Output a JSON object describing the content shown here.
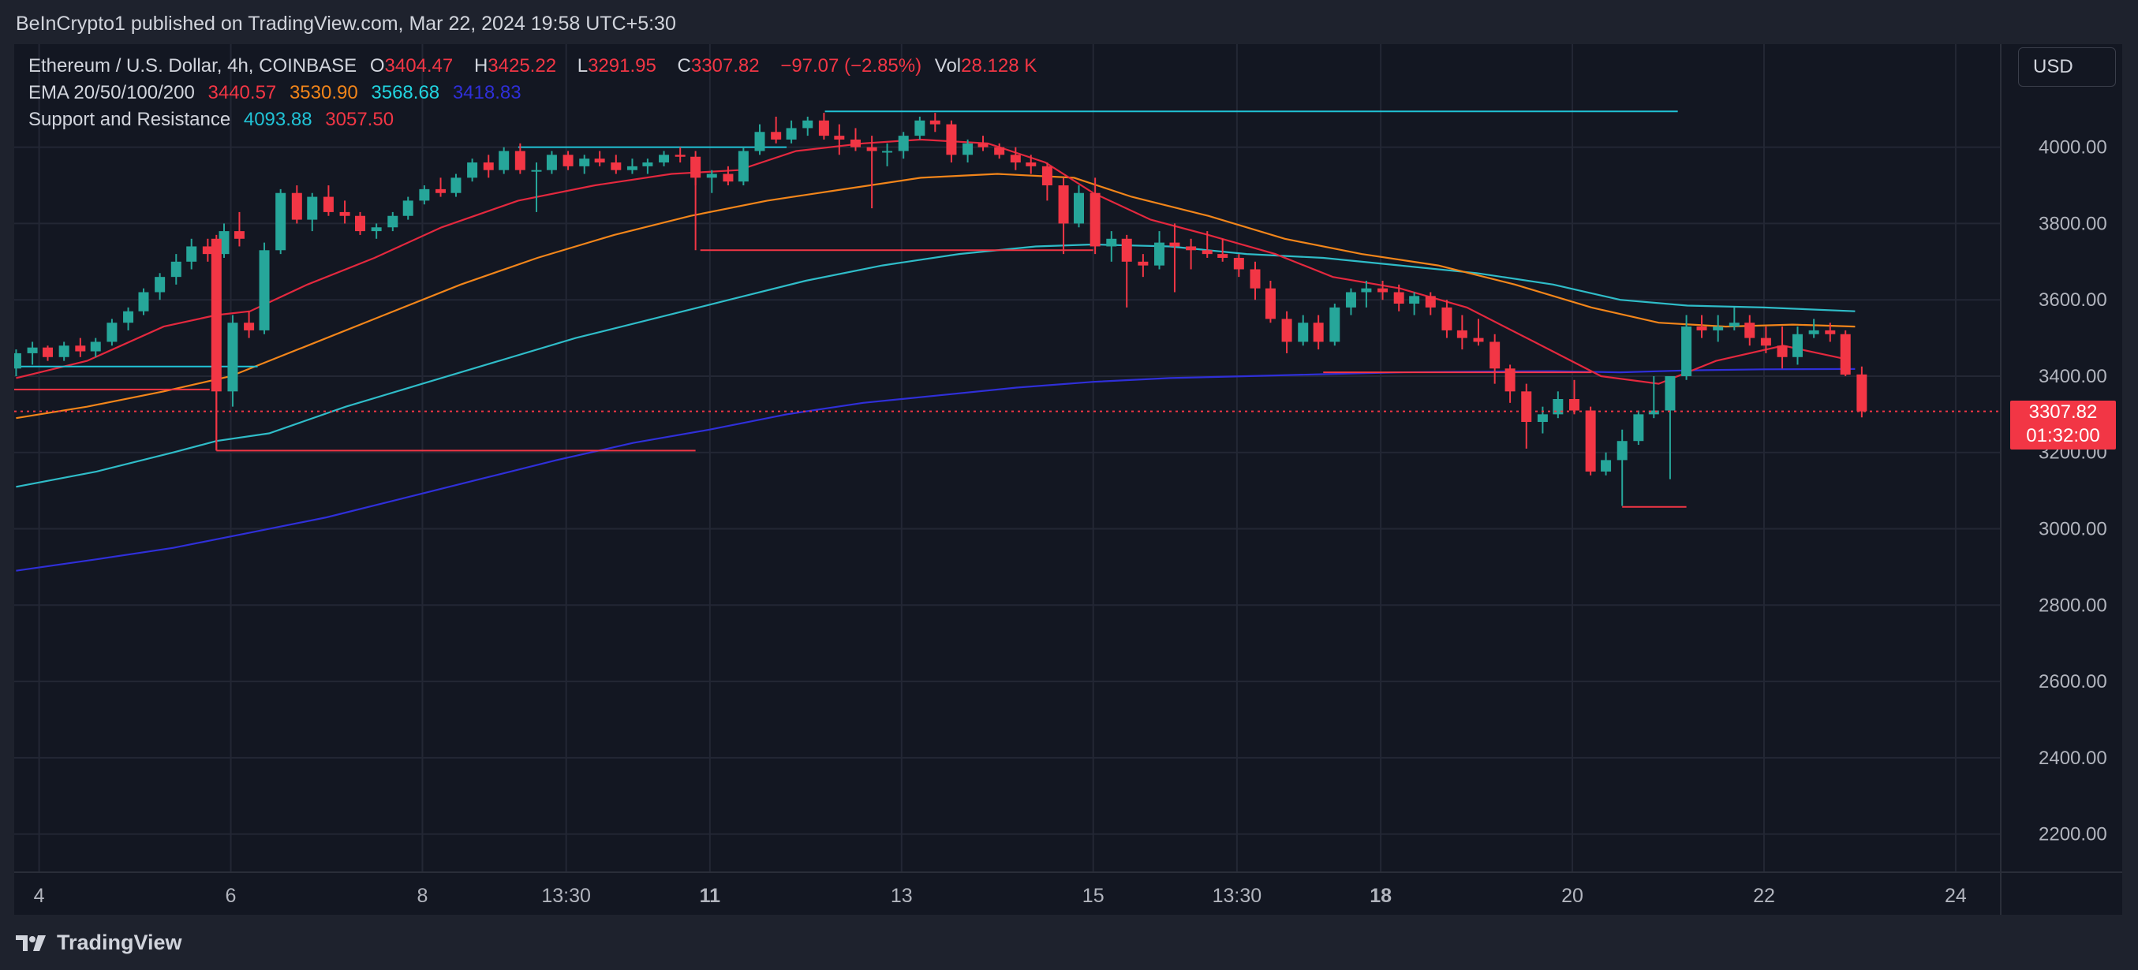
{
  "header": {
    "publish_line": "BeInCrypto1 published on TradingView.com, Mar 22, 2024 19:58 UTC+5:30"
  },
  "legend": {
    "symbol": "Ethereum / U.S. Dollar, 4h, COINBASE",
    "o_label": "O",
    "o_value": "3404.47",
    "h_label": "H",
    "h_value": "3425.22",
    "l_label": "L",
    "l_value": "3291.95",
    "c_label": "C",
    "c_value": "3307.82",
    "change": "−97.07 (−2.85%)",
    "vol_label": "Vol",
    "vol_value": "28.128 K",
    "ema_label": "EMA 20/50/100/200",
    "ema20": "3440.57",
    "ema50": "3530.90",
    "ema100": "3568.68",
    "ema200": "3418.83",
    "sr_label": "Support and Resistance",
    "resistance": "4093.88",
    "support": "3057.50"
  },
  "currency_button": "USD",
  "price_badge": {
    "price": "3307.82",
    "countdown": "01:32:00"
  },
  "footer": {
    "brand": "TradingView"
  },
  "colors": {
    "bg": "#131722",
    "up": "#26a69a",
    "down": "#f23645",
    "ema20": "#e3283e",
    "ema50": "#f2851a",
    "ema100": "#2fbcc8",
    "ema200": "#2f2fd8",
    "resistance": "#21c3d6",
    "support": "#f23645"
  },
  "chart_data": {
    "type": "candlestick",
    "title": "Ethereum / U.S. Dollar, 4h, COINBASE",
    "ylim": [
      2100,
      4270
    ],
    "y_ticks": [
      2200,
      2400,
      2600,
      2800,
      3000,
      3200,
      3400,
      3600,
      3800,
      4000
    ],
    "y_tick_labels": [
      "2200.00",
      "2400.00",
      "2600.00",
      "2800.00",
      "3000.00",
      "3200.00",
      "3400.00",
      "3600.00",
      "3800.00",
      "4000.00"
    ],
    "x_ticks": [
      {
        "day": 4,
        "label": "4",
        "bold": false
      },
      {
        "day": 6,
        "label": "6",
        "bold": false
      },
      {
        "day": 8,
        "label": "8",
        "bold": false
      },
      {
        "day": 9.5,
        "label": "13:30",
        "bold": false
      },
      {
        "day": 11,
        "label": "11",
        "bold": true
      },
      {
        "day": 13,
        "label": "13",
        "bold": false
      },
      {
        "day": 15,
        "label": "15",
        "bold": false
      },
      {
        "day": 16.5,
        "label": "13:30",
        "bold": false
      },
      {
        "day": 18,
        "label": "18",
        "bold": true
      },
      {
        "day": 20,
        "label": "20",
        "bold": false
      },
      {
        "day": 22,
        "label": "22",
        "bold": false
      },
      {
        "day": 24,
        "label": "24",
        "bold": false
      }
    ],
    "x_range_days": [
      3.74,
      24.47
    ],
    "last_price": 3307.82,
    "candles": [
      [
        3.76,
        3420,
        3470,
        3400,
        3460
      ],
      [
        3.93,
        3460,
        3490,
        3430,
        3475
      ],
      [
        4.09,
        3475,
        3480,
        3440,
        3450
      ],
      [
        4.26,
        3450,
        3490,
        3440,
        3480
      ],
      [
        4.43,
        3480,
        3500,
        3450,
        3465
      ],
      [
        4.59,
        3465,
        3500,
        3450,
        3490
      ],
      [
        4.76,
        3490,
        3550,
        3480,
        3540
      ],
      [
        4.93,
        3540,
        3580,
        3520,
        3570
      ],
      [
        5.09,
        3570,
        3630,
        3560,
        3620
      ],
      [
        5.26,
        3620,
        3670,
        3600,
        3660
      ],
      [
        5.43,
        3660,
        3720,
        3640,
        3700
      ],
      [
        5.59,
        3700,
        3760,
        3680,
        3740
      ],
      [
        5.76,
        3740,
        3760,
        3700,
        3720
      ],
      [
        5.93,
        3720,
        3800,
        3710,
        3780
      ],
      [
        6.09,
        3780,
        3830,
        3740,
        3760
      ],
      [
        5.85,
        3760,
        3770,
        3205,
        3360
      ],
      [
        6.02,
        3360,
        3560,
        3320,
        3540
      ],
      [
        6.19,
        3540,
        3570,
        3500,
        3520
      ],
      [
        6.35,
        3520,
        3750,
        3510,
        3730
      ],
      [
        6.52,
        3730,
        3890,
        3720,
        3880
      ],
      [
        6.69,
        3880,
        3900,
        3800,
        3810
      ],
      [
        6.85,
        3810,
        3880,
        3780,
        3870
      ],
      [
        7.02,
        3870,
        3900,
        3820,
        3830
      ],
      [
        7.19,
        3830,
        3860,
        3800,
        3820
      ],
      [
        7.35,
        3820,
        3830,
        3770,
        3780
      ],
      [
        7.52,
        3780,
        3800,
        3760,
        3790
      ],
      [
        7.69,
        3790,
        3830,
        3780,
        3820
      ],
      [
        7.85,
        3820,
        3870,
        3810,
        3860
      ],
      [
        8.02,
        3860,
        3900,
        3850,
        3890
      ],
      [
        8.19,
        3890,
        3920,
        3870,
        3880
      ],
      [
        8.35,
        3880,
        3930,
        3870,
        3920
      ],
      [
        8.52,
        3920,
        3970,
        3910,
        3960
      ],
      [
        8.69,
        3960,
        3980,
        3920,
        3940
      ],
      [
        8.85,
        3940,
        4000,
        3930,
        3990
      ],
      [
        9.02,
        3990,
        4010,
        3930,
        3940
      ],
      [
        9.19,
        3940,
        3960,
        3830,
        3940
      ],
      [
        9.35,
        3940,
        3990,
        3930,
        3980
      ],
      [
        9.52,
        3980,
        3990,
        3940,
        3950
      ],
      [
        9.69,
        3950,
        3980,
        3930,
        3970
      ],
      [
        9.85,
        3970,
        3990,
        3950,
        3960
      ],
      [
        10.02,
        3960,
        3980,
        3930,
        3940
      ],
      [
        10.19,
        3940,
        3970,
        3930,
        3950
      ],
      [
        10.35,
        3950,
        3970,
        3930,
        3960
      ],
      [
        10.52,
        3960,
        3990,
        3950,
        3980
      ],
      [
        10.69,
        3980,
        4000,
        3960,
        3975
      ],
      [
        10.85,
        3975,
        3990,
        3900,
        3920
      ],
      [
        11.02,
        3920,
        3940,
        3880,
        3930
      ],
      [
        11.19,
        3930,
        3950,
        3900,
        3910
      ],
      [
        11.35,
        3910,
        4000,
        3900,
        3990
      ],
      [
        11.52,
        3990,
        4060,
        3980,
        4040
      ],
      [
        11.69,
        4040,
        4080,
        4010,
        4020
      ],
      [
        11.85,
        4020,
        4070,
        4010,
        4050
      ],
      [
        12.02,
        4050,
        4080,
        4030,
        4070
      ],
      [
        12.19,
        4070,
        4090,
        4020,
        4030
      ],
      [
        12.35,
        4030,
        4060,
        3980,
        4020
      ],
      [
        12.52,
        4020,
        4050,
        3990,
        4000
      ],
      [
        12.69,
        4000,
        4030,
        3840,
        3990
      ],
      [
        12.85,
        3990,
        4010,
        3950,
        3990
      ],
      [
        13.02,
        3990,
        4040,
        3970,
        4030
      ],
      [
        13.19,
        4030,
        4080,
        4020,
        4070
      ],
      [
        13.35,
        4070,
        4090,
        4040,
        4060
      ],
      [
        13.52,
        4060,
        4070,
        3960,
        3980
      ],
      [
        13.69,
        3980,
        4020,
        3960,
        4010
      ],
      [
        13.85,
        4010,
        4030,
        3990,
        4000
      ],
      [
        14.02,
        4000,
        4010,
        3970,
        3980
      ],
      [
        14.19,
        3980,
        4000,
        3940,
        3960
      ],
      [
        14.35,
        3960,
        3980,
        3930,
        3950
      ],
      [
        14.52,
        3950,
        3960,
        3860,
        3900
      ],
      [
        14.69,
        3900,
        3920,
        3720,
        3800
      ],
      [
        14.85,
        3800,
        3900,
        3790,
        3880
      ],
      [
        15.02,
        3880,
        3920,
        3720,
        3740
      ],
      [
        15.19,
        3740,
        3780,
        3700,
        3760
      ],
      [
        15.35,
        3760,
        3770,
        3580,
        3700
      ],
      [
        15.52,
        3700,
        3720,
        3660,
        3690
      ],
      [
        15.69,
        3690,
        3780,
        3680,
        3750
      ],
      [
        15.85,
        3750,
        3800,
        3620,
        3740
      ],
      [
        16.02,
        3740,
        3760,
        3680,
        3730
      ],
      [
        16.19,
        3730,
        3780,
        3710,
        3720
      ],
      [
        16.35,
        3720,
        3760,
        3700,
        3710
      ],
      [
        16.52,
        3710,
        3720,
        3660,
        3680
      ],
      [
        16.69,
        3680,
        3700,
        3600,
        3630
      ],
      [
        16.85,
        3630,
        3650,
        3540,
        3550
      ],
      [
        17.02,
        3550,
        3570,
        3460,
        3490
      ],
      [
        17.19,
        3490,
        3560,
        3480,
        3540
      ],
      [
        17.35,
        3540,
        3560,
        3470,
        3490
      ],
      [
        17.52,
        3490,
        3590,
        3480,
        3580
      ],
      [
        17.69,
        3580,
        3630,
        3560,
        3620
      ],
      [
        17.85,
        3620,
        3650,
        3580,
        3630
      ],
      [
        18.02,
        3630,
        3650,
        3600,
        3620
      ],
      [
        18.19,
        3620,
        3640,
        3570,
        3590
      ],
      [
        18.35,
        3590,
        3620,
        3560,
        3610
      ],
      [
        18.52,
        3610,
        3620,
        3560,
        3580
      ],
      [
        18.69,
        3580,
        3600,
        3500,
        3520
      ],
      [
        18.85,
        3520,
        3560,
        3470,
        3500
      ],
      [
        19.02,
        3500,
        3550,
        3480,
        3490
      ],
      [
        19.19,
        3490,
        3510,
        3380,
        3420
      ],
      [
        19.35,
        3420,
        3430,
        3330,
        3360
      ],
      [
        19.52,
        3360,
        3380,
        3210,
        3280
      ],
      [
        19.69,
        3280,
        3320,
        3250,
        3300
      ],
      [
        19.85,
        3300,
        3360,
        3290,
        3340
      ],
      [
        20.02,
        3340,
        3390,
        3300,
        3310
      ],
      [
        20.19,
        3310,
        3320,
        3140,
        3150
      ],
      [
        20.35,
        3150,
        3200,
        3140,
        3180
      ],
      [
        20.52,
        3180,
        3260,
        3060,
        3230
      ],
      [
        20.69,
        3230,
        3310,
        3220,
        3300
      ],
      [
        20.85,
        3300,
        3400,
        3290,
        3310
      ],
      [
        21.02,
        3310,
        3380,
        3130,
        3400
      ],
      [
        21.19,
        3400,
        3560,
        3390,
        3530
      ],
      [
        21.35,
        3530,
        3560,
        3500,
        3520
      ],
      [
        21.52,
        3520,
        3560,
        3490,
        3530
      ],
      [
        21.69,
        3530,
        3580,
        3520,
        3540
      ],
      [
        21.85,
        3540,
        3560,
        3480,
        3500
      ],
      [
        22.02,
        3500,
        3530,
        3460,
        3480
      ],
      [
        22.19,
        3480,
        3530,
        3420,
        3450
      ],
      [
        22.35,
        3450,
        3530,
        3430,
        3510
      ],
      [
        22.52,
        3510,
        3550,
        3500,
        3520
      ],
      [
        22.69,
        3520,
        3540,
        3490,
        3510
      ],
      [
        22.85,
        3510,
        3520,
        3400,
        3404
      ],
      [
        23.02,
        3404.47,
        3425.22,
        3291.95,
        3307.82
      ]
    ],
    "ema20": [
      [
        3.76,
        3395
      ],
      [
        4.5,
        3440
      ],
      [
        5.3,
        3530
      ],
      [
        5.85,
        3560
      ],
      [
        6.2,
        3570
      ],
      [
        6.8,
        3640
      ],
      [
        7.5,
        3710
      ],
      [
        8.2,
        3790
      ],
      [
        9,
        3860
      ],
      [
        9.8,
        3900
      ],
      [
        10.6,
        3930
      ],
      [
        11.3,
        3940
      ],
      [
        11.9,
        3990
      ],
      [
        12.6,
        4010
      ],
      [
        13.2,
        4020
      ],
      [
        13.9,
        4010
      ],
      [
        14.5,
        3960
      ],
      [
        15,
        3880
      ],
      [
        15.6,
        3810
      ],
      [
        16.2,
        3770
      ],
      [
        16.9,
        3720
      ],
      [
        17.5,
        3660
      ],
      [
        18.2,
        3630
      ],
      [
        18.9,
        3580
      ],
      [
        19.6,
        3490
      ],
      [
        20.3,
        3400
      ],
      [
        20.9,
        3380
      ],
      [
        21.5,
        3440
      ],
      [
        22.2,
        3480
      ],
      [
        22.9,
        3442
      ]
    ],
    "ema50": [
      [
        3.76,
        3290
      ],
      [
        4.5,
        3320
      ],
      [
        5.3,
        3360
      ],
      [
        6,
        3400
      ],
      [
        6.8,
        3480
      ],
      [
        7.6,
        3560
      ],
      [
        8.4,
        3640
      ],
      [
        9.2,
        3710
      ],
      [
        10,
        3770
      ],
      [
        10.8,
        3820
      ],
      [
        11.6,
        3860
      ],
      [
        12.4,
        3890
      ],
      [
        13.2,
        3920
      ],
      [
        14,
        3930
      ],
      [
        14.8,
        3920
      ],
      [
        15.4,
        3870
      ],
      [
        16.2,
        3820
      ],
      [
        17,
        3760
      ],
      [
        17.8,
        3720
      ],
      [
        18.6,
        3690
      ],
      [
        19.4,
        3640
      ],
      [
        20.2,
        3580
      ],
      [
        20.9,
        3540
      ],
      [
        21.6,
        3530
      ],
      [
        22.3,
        3535
      ],
      [
        22.95,
        3530
      ]
    ],
    "ema100": [
      [
        3.76,
        3110
      ],
      [
        4.6,
        3150
      ],
      [
        5.4,
        3200
      ],
      [
        5.85,
        3230
      ],
      [
        6.4,
        3250
      ],
      [
        7.2,
        3320
      ],
      [
        8,
        3380
      ],
      [
        8.8,
        3440
      ],
      [
        9.6,
        3500
      ],
      [
        10.4,
        3550
      ],
      [
        11.2,
        3600
      ],
      [
        12,
        3650
      ],
      [
        12.8,
        3690
      ],
      [
        13.6,
        3720
      ],
      [
        14.4,
        3740
      ],
      [
        15,
        3745
      ],
      [
        15.8,
        3740
      ],
      [
        16.6,
        3720
      ],
      [
        17.4,
        3710
      ],
      [
        18.2,
        3690
      ],
      [
        19,
        3670
      ],
      [
        19.8,
        3640
      ],
      [
        20.5,
        3600
      ],
      [
        21.2,
        3585
      ],
      [
        22,
        3580
      ],
      [
        22.95,
        3570
      ]
    ],
    "ema200": [
      [
        3.76,
        2890
      ],
      [
        4.6,
        2920
      ],
      [
        5.4,
        2950
      ],
      [
        6.2,
        2990
      ],
      [
        7,
        3030
      ],
      [
        7.8,
        3080
      ],
      [
        8.6,
        3130
      ],
      [
        9.4,
        3180
      ],
      [
        10.2,
        3225
      ],
      [
        11,
        3260
      ],
      [
        11.8,
        3300
      ],
      [
        12.6,
        3330
      ],
      [
        13.4,
        3350
      ],
      [
        14.2,
        3370
      ],
      [
        15,
        3385
      ],
      [
        15.8,
        3395
      ],
      [
        16.6,
        3400
      ],
      [
        17.4,
        3405
      ],
      [
        18.2,
        3410
      ],
      [
        19,
        3412
      ],
      [
        19.8,
        3413
      ],
      [
        20.5,
        3410
      ],
      [
        21.2,
        3415
      ],
      [
        22,
        3418
      ],
      [
        22.95,
        3418.83
      ]
    ],
    "sr_segments": [
      {
        "x1": 3.74,
        "x2": 6.28,
        "y": 3425.22,
        "color": "resistance"
      },
      {
        "x1": 3.74,
        "x2": 5.78,
        "y": 3365,
        "color": "support"
      },
      {
        "x1": 5.85,
        "x2": 10.85,
        "y": 3205,
        "color": "support"
      },
      {
        "x1": 9.0,
        "x2": 11.8,
        "y": 4000,
        "color": "resistance"
      },
      {
        "x1": 10.9,
        "x2": 15.0,
        "y": 3730,
        "color": "support"
      },
      {
        "x1": 12.2,
        "x2": 21.1,
        "y": 4093.88,
        "color": "resistance"
      },
      {
        "x1": 17.4,
        "x2": 20.2,
        "y": 3410,
        "color": "support"
      },
      {
        "x1": 20.52,
        "x2": 21.19,
        "y": 3057.5,
        "color": "support"
      }
    ],
    "sr_vlines": [
      {
        "x": 5.85,
        "y1": 3205,
        "y2": 3360,
        "color": "support"
      },
      {
        "x": 10.85,
        "y1": 3730,
        "y2": 3920,
        "color": "support"
      }
    ]
  }
}
